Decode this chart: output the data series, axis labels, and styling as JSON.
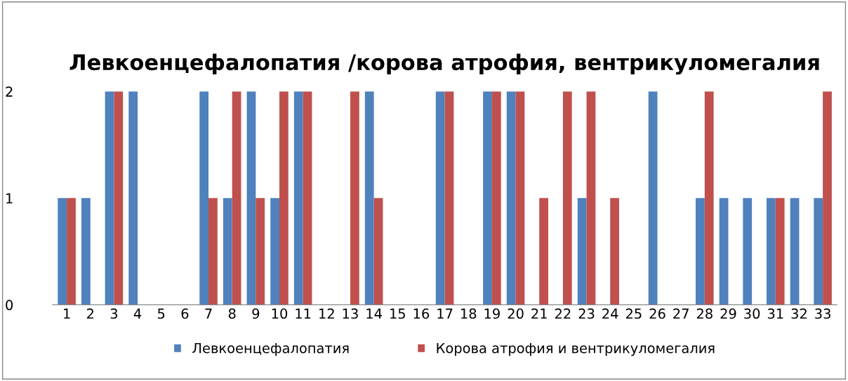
{
  "chart_data": {
    "type": "bar",
    "title": "Левкоенцефалопатия /корова атрофия, вентрикуломегалия",
    "categories": [
      "1",
      "2",
      "3",
      "4",
      "5",
      "6",
      "7",
      "8",
      "9",
      "10",
      "11",
      "12",
      "13",
      "14",
      "15",
      "16",
      "17",
      "18",
      "19",
      "20",
      "21",
      "22",
      "23",
      "24",
      "25",
      "26",
      "27",
      "28",
      "29",
      "30",
      "31",
      "32",
      "33"
    ],
    "series": [
      {
        "name": "Левкоенцефалопатия",
        "color": "#4f81bd",
        "values": [
          1,
          1,
          2,
          2,
          0,
          0,
          2,
          1,
          2,
          1,
          2,
          0,
          0,
          2,
          0,
          0,
          2,
          0,
          2,
          2,
          0,
          0,
          1,
          0,
          0,
          2,
          0,
          1,
          1,
          1,
          1,
          1,
          1
        ]
      },
      {
        "name": "Корова атрофия и вентрикуломегалия",
        "color": "#c0504d",
        "values": [
          1,
          0,
          2,
          0,
          0,
          0,
          1,
          2,
          1,
          2,
          2,
          0,
          2,
          1,
          0,
          0,
          2,
          0,
          2,
          2,
          1,
          2,
          2,
          1,
          0,
          0,
          0,
          2,
          0,
          0,
          1,
          0,
          2
        ]
      }
    ],
    "ylim": [
      0,
      2
    ],
    "yticks": [
      0,
      1,
      2
    ],
    "grid": false,
    "legend": "bottom"
  }
}
